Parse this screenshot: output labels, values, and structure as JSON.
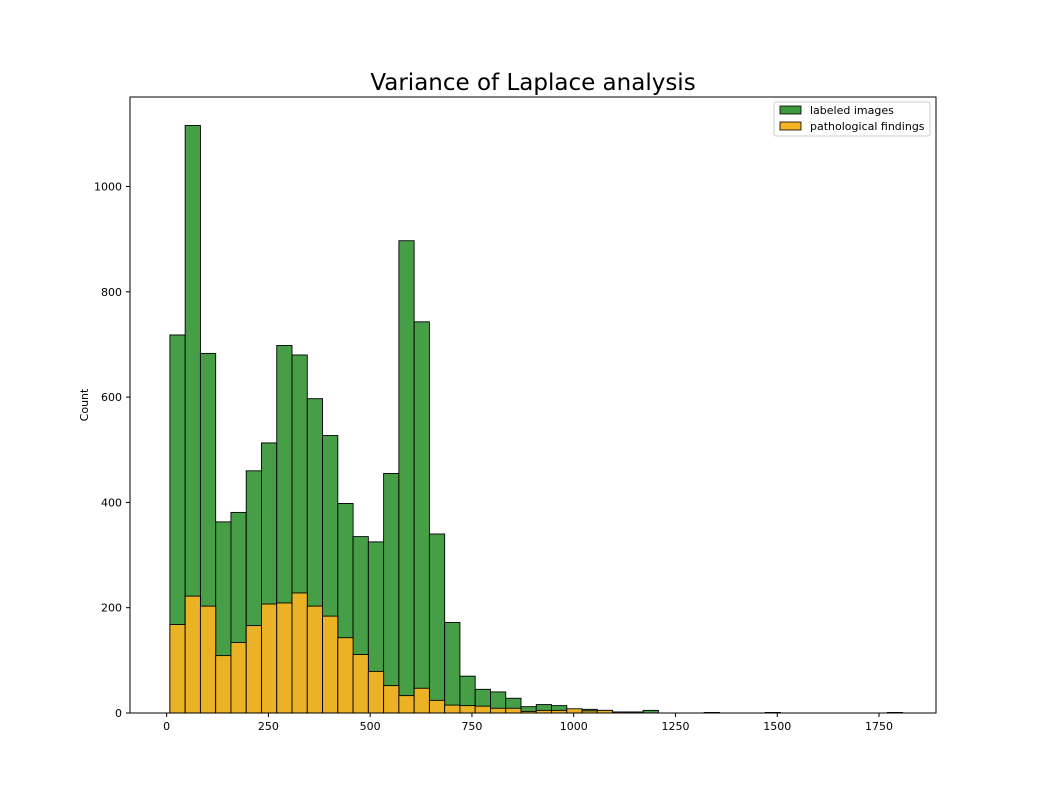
{
  "chart_data": {
    "type": "bar",
    "title": "Variance of Laplace analysis",
    "xlabel": "",
    "ylabel": "Count",
    "xlim": [
      -90,
      1890
    ],
    "ylim": [
      0,
      1170
    ],
    "x_ticks": [
      0,
      250,
      500,
      750,
      1000,
      1250,
      1500,
      1750
    ],
    "y_ticks": [
      0,
      200,
      400,
      600,
      800,
      1000
    ],
    "grid": false,
    "legend": "top-right",
    "bin_width": 37.5,
    "series": [
      {
        "name": "labeled images",
        "color": "#3c9a3c",
        "bins": [
          {
            "x": 8,
            "count": 718
          },
          {
            "x": 45.5,
            "count": 1116
          },
          {
            "x": 83,
            "count": 683
          },
          {
            "x": 120.5,
            "count": 363
          },
          {
            "x": 158,
            "count": 381
          },
          {
            "x": 195.5,
            "count": 460
          },
          {
            "x": 233,
            "count": 513
          },
          {
            "x": 270.5,
            "count": 698
          },
          {
            "x": 308,
            "count": 680
          },
          {
            "x": 345.5,
            "count": 597
          },
          {
            "x": 383,
            "count": 527
          },
          {
            "x": 420.5,
            "count": 398
          },
          {
            "x": 458,
            "count": 335
          },
          {
            "x": 495.5,
            "count": 325
          },
          {
            "x": 533,
            "count": 455
          },
          {
            "x": 570.5,
            "count": 897
          },
          {
            "x": 608,
            "count": 743
          },
          {
            "x": 645.5,
            "count": 340
          },
          {
            "x": 683,
            "count": 172
          },
          {
            "x": 720.5,
            "count": 70
          },
          {
            "x": 758,
            "count": 45
          },
          {
            "x": 795.5,
            "count": 40
          },
          {
            "x": 833,
            "count": 28
          },
          {
            "x": 870.5,
            "count": 12
          },
          {
            "x": 908,
            "count": 16
          },
          {
            "x": 945.5,
            "count": 14
          },
          {
            "x": 983,
            "count": 4
          },
          {
            "x": 1020.5,
            "count": 7
          },
          {
            "x": 1058,
            "count": 5
          },
          {
            "x": 1095.5,
            "count": 2
          },
          {
            "x": 1133,
            "count": 2
          },
          {
            "x": 1170.5,
            "count": 5
          },
          {
            "x": 1320.5,
            "count": 1
          },
          {
            "x": 1470.5,
            "count": 1
          },
          {
            "x": 1770.5,
            "count": 1
          }
        ]
      },
      {
        "name": "pathological findings",
        "color": "#f5b324",
        "bins": [
          {
            "x": 8,
            "count": 168
          },
          {
            "x": 45.5,
            "count": 222
          },
          {
            "x": 83,
            "count": 203
          },
          {
            "x": 120.5,
            "count": 109
          },
          {
            "x": 158,
            "count": 134
          },
          {
            "x": 195.5,
            "count": 166
          },
          {
            "x": 233,
            "count": 207
          },
          {
            "x": 270.5,
            "count": 209
          },
          {
            "x": 308,
            "count": 228
          },
          {
            "x": 345.5,
            "count": 203
          },
          {
            "x": 383,
            "count": 184
          },
          {
            "x": 420.5,
            "count": 143
          },
          {
            "x": 458,
            "count": 111
          },
          {
            "x": 495.5,
            "count": 79
          },
          {
            "x": 533,
            "count": 52
          },
          {
            "x": 570.5,
            "count": 33
          },
          {
            "x": 608,
            "count": 47
          },
          {
            "x": 645.5,
            "count": 24
          },
          {
            "x": 683,
            "count": 15
          },
          {
            "x": 720.5,
            "count": 14
          },
          {
            "x": 758,
            "count": 13
          },
          {
            "x": 795.5,
            "count": 9
          },
          {
            "x": 833,
            "count": 9
          },
          {
            "x": 870.5,
            "count": 3
          },
          {
            "x": 908,
            "count": 5
          },
          {
            "x": 945.5,
            "count": 5
          },
          {
            "x": 983,
            "count": 8
          },
          {
            "x": 1020.5,
            "count": 4
          },
          {
            "x": 1058,
            "count": 5
          },
          {
            "x": 1095.5,
            "count": 2
          }
        ]
      }
    ]
  }
}
